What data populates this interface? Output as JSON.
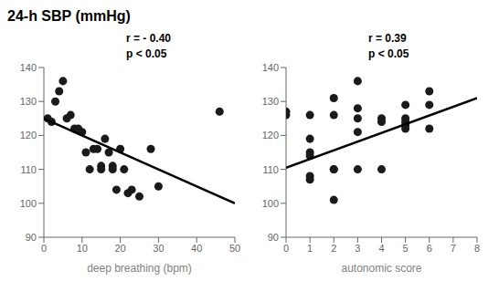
{
  "chart_data": [
    {
      "type": "scatter",
      "title": "24-h SBP (mmHg)",
      "xlabel": "deep breathing (bpm)",
      "annotation": "r = - 0.40\np < 0.05",
      "xlim": [
        0,
        50
      ],
      "ylim": [
        90,
        140
      ],
      "xticks": [
        0,
        10,
        20,
        30,
        40,
        50
      ],
      "yticks": [
        90,
        100,
        110,
        120,
        130,
        140
      ],
      "grid": false,
      "series": [
        {
          "type": "scatter",
          "color": "#1a1a1a",
          "x": [
            1,
            2,
            3,
            4,
            5,
            6,
            7,
            8,
            9,
            10,
            11,
            12,
            13,
            14,
            15,
            15,
            16,
            17,
            18,
            18,
            19,
            20,
            21,
            22,
            23,
            25,
            28,
            30,
            46
          ],
          "values": [
            125,
            124,
            130,
            133,
            136,
            125,
            126,
            122,
            122,
            121,
            115,
            110,
            116,
            116,
            111,
            110,
            119,
            115,
            110,
            111,
            104,
            116,
            110,
            103,
            104,
            102,
            116,
            105,
            127
          ]
        },
        {
          "type": "line",
          "color": "#000000",
          "x": [
            0,
            50
          ],
          "values": [
            125,
            100
          ]
        }
      ]
    },
    {
      "type": "scatter",
      "xlabel": "autonomic score",
      "annotation": "r = 0.39\np < 0.05",
      "xlim": [
        0,
        8
      ],
      "ylim": [
        90,
        140
      ],
      "xticks": [
        0,
        1,
        2,
        3,
        4,
        5,
        6,
        7,
        8
      ],
      "yticks": [
        90,
        100,
        110,
        120,
        130,
        140
      ],
      "grid": false,
      "series": [
        {
          "type": "scatter",
          "color": "#1a1a1a",
          "x": [
            0,
            0,
            1,
            1,
            1,
            1,
            1,
            1,
            2,
            2,
            2,
            2,
            2,
            3,
            3,
            3,
            3,
            3,
            4,
            4,
            4,
            5,
            5,
            5,
            5,
            5,
            6,
            6,
            6
          ],
          "values": [
            127,
            126,
            115,
            114,
            108,
            107,
            119,
            126,
            110,
            101,
            131,
            126,
            110,
            136,
            128,
            125,
            110,
            121,
            110,
            125,
            124,
            124,
            129,
            125,
            123,
            122,
            133,
            129,
            122
          ]
        },
        {
          "type": "line",
          "color": "#000000",
          "x": [
            0,
            8
          ],
          "values": [
            110.5,
            131
          ]
        }
      ]
    }
  ]
}
